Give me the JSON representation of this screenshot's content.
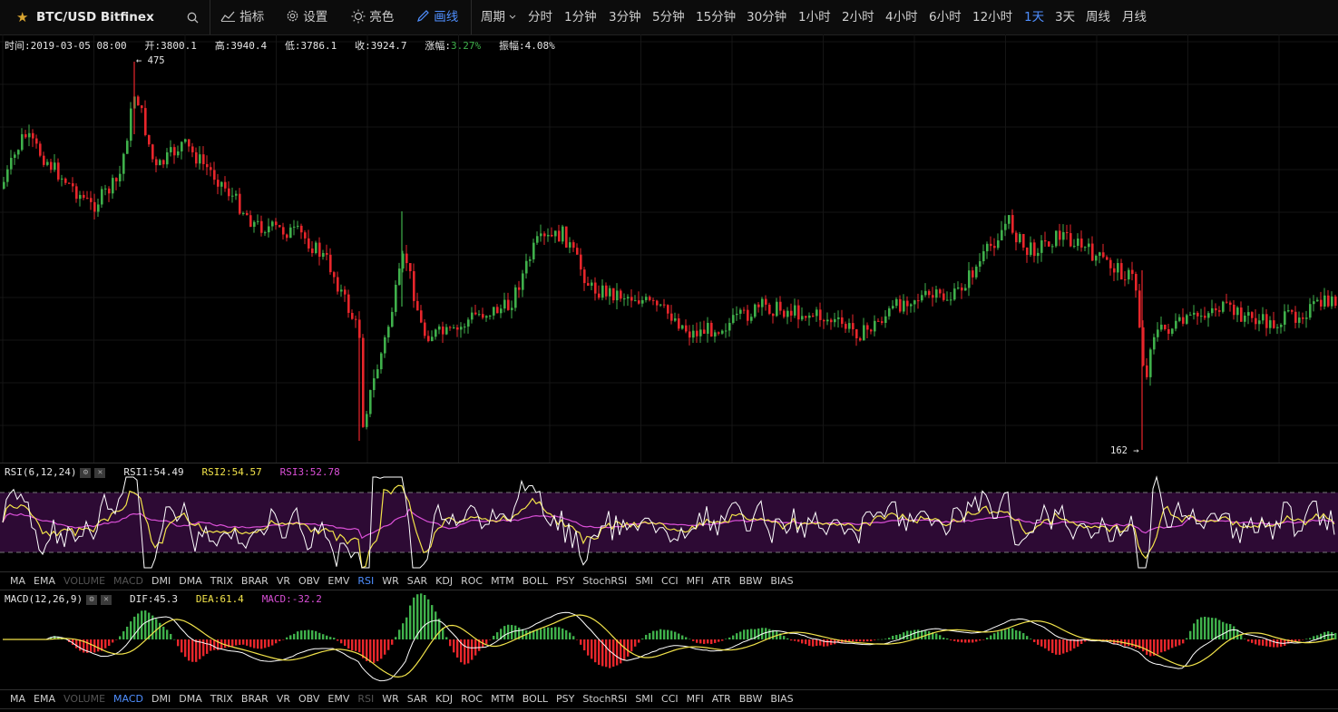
{
  "toolbar": {
    "symbol": "BTC/USD Bitfinex",
    "indicators_label": "指标",
    "settings_label": "设置",
    "theme_label": "亮色",
    "draw_label": "画线",
    "period_label": "周期",
    "periods": [
      "分时",
      "1分钟",
      "3分钟",
      "5分钟",
      "15分钟",
      "30分钟",
      "1小时",
      "2小时",
      "4小时",
      "6小时",
      "12小时",
      "1天",
      "3天",
      "周线",
      "月线"
    ],
    "active_period": "1天"
  },
  "ohlc": {
    "time": "时间:2019-03-05 08:00",
    "open": "开:3800.1",
    "high": "高:3940.4",
    "low": "低:3786.1",
    "close": "收:3924.7",
    "change_label": "涨幅:",
    "change_value": "3.27%",
    "amplitude": "振幅:4.08%"
  },
  "markers": {
    "high_label": "← 475",
    "low_label": "162 →"
  },
  "rsi_panel": {
    "title": "RSI(6,12,24)",
    "rsi1": "RSI1:54.49",
    "rsi2": "RSI2:54.57",
    "rsi3": "RSI3:52.78"
  },
  "macd_panel": {
    "title": "MACD(12,26,9)",
    "dif": "DIF:45.3",
    "dea": "DEA:61.4",
    "macd": "MACD:-32.2"
  },
  "indicator_tabs": [
    "MA",
    "EMA",
    "VOLUME",
    "MACD",
    "DMI",
    "DMA",
    "TRIX",
    "BRAR",
    "VR",
    "OBV",
    "EMV",
    "RSI",
    "WR",
    "SAR",
    "KDJ",
    "ROC",
    "MTM",
    "BOLL",
    "PSY",
    "StochRSI",
    "SMI",
    "CCI",
    "MFI",
    "ATR",
    "BBW",
    "BIAS"
  ],
  "colors": {
    "up": "#3fb04b",
    "down": "#e8262b",
    "accent": "#4f8fff",
    "rsi1": "#ffffff",
    "rsi2": "#f2e34a",
    "rsi3": "#d94fd6",
    "dif": "#ffffff",
    "dea": "#f2e34a",
    "macd_label": "#d94fd6",
    "rsi_band": "#2d0a34"
  },
  "icons": {
    "star": "star-icon",
    "search": "search-icon",
    "indicators": "bar-chart-icon",
    "settings": "gear-icon",
    "theme": "sun-icon",
    "draw": "pen-icon"
  }
}
